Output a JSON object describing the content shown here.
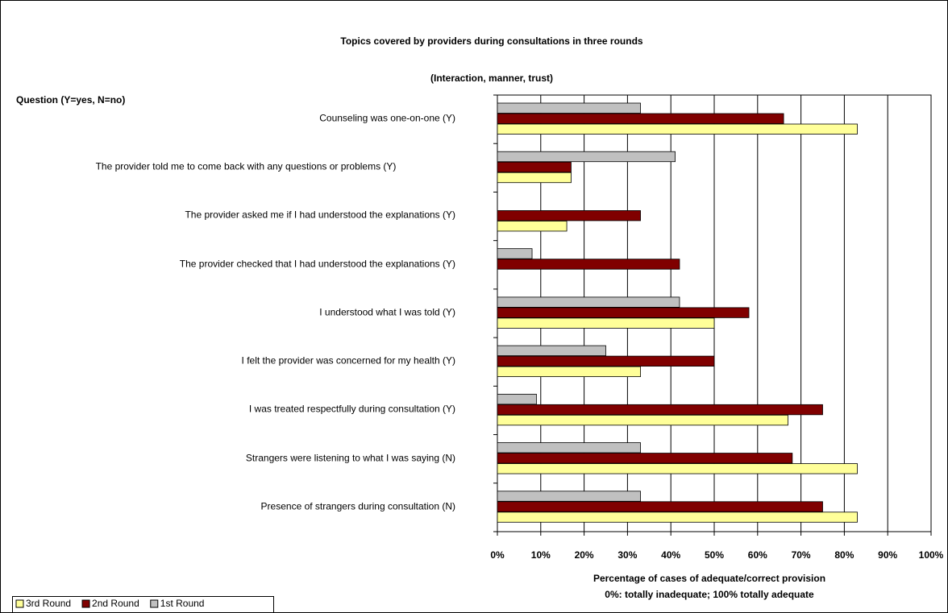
{
  "chart_data": {
    "type": "bar",
    "orientation": "horizontal",
    "title": "Topics covered by providers during consultations in three rounds",
    "subtitle": "(Interaction, manner, trust)",
    "ylabel": "Question (Y=yes, N=no)",
    "xlabel": "Percentage of cases of adequate/correct provision",
    "xlabel_note": "0%: totally inadequate; 100% totally adequate",
    "categories": [
      "Counseling was one-on-one (Y)",
      "The provider told me to come back with any questions or problems (Y)",
      "The provider asked me if I had understood the explanations (Y)",
      "The provider checked that I had understood the explanations (Y)",
      "I understood what I was told (Y)",
      "I felt the provider was concerned for my health (Y)",
      "I was treated respectfully during consultation (Y)",
      "Strangers were listening to what I was saying (N)",
      "Presence of strangers during consultation (N)"
    ],
    "series": [
      {
        "name": "3rd Round",
        "color": "#ffff99",
        "values": [
          83,
          17,
          16,
          0,
          50,
          33,
          67,
          83,
          83
        ]
      },
      {
        "name": "2nd Round",
        "color": "#800000",
        "values": [
          66,
          17,
          33,
          42,
          58,
          50,
          75,
          68,
          75
        ]
      },
      {
        "name": "1st Round",
        "color": "#c0c0c0",
        "values": [
          33,
          41,
          0,
          8,
          42,
          25,
          9,
          33,
          33
        ]
      }
    ],
    "xlim": [
      0,
      100
    ],
    "xticks": [
      {
        "value": 0,
        "label": "0%"
      },
      {
        "value": 10,
        "label": "10%"
      },
      {
        "value": 20,
        "label": "20%"
      },
      {
        "value": 30,
        "label": "30%"
      },
      {
        "value": 40,
        "label": "40%"
      },
      {
        "value": 50,
        "label": "50%"
      },
      {
        "value": 60,
        "label": "60%"
      },
      {
        "value": 70,
        "label": "70%"
      },
      {
        "value": 80,
        "label": "80%"
      },
      {
        "value": 90,
        "label": "90%"
      },
      {
        "value": 100,
        "label": "100%"
      }
    ],
    "grid": true,
    "legend": "bottom-left"
  }
}
